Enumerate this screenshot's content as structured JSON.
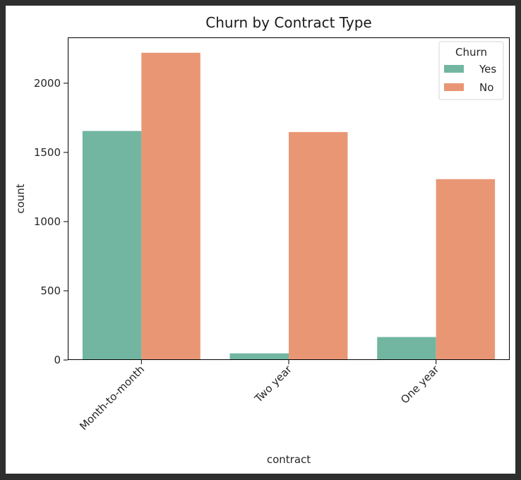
{
  "chart_data": {
    "type": "bar",
    "title": "Churn by Contract Type",
    "xlabel": "contract",
    "ylabel": "count",
    "categories": [
      "Month-to-month",
      "Two year",
      "One year"
    ],
    "series": [
      {
        "name": "Yes",
        "values": [
          1655,
          48,
          166
        ],
        "color": "#72b6a1"
      },
      {
        "name": "No",
        "values": [
          2220,
          1647,
          1307
        ],
        "color": "#e99675"
      }
    ],
    "ylim": [
      0,
      2331
    ],
    "yticks": [
      0,
      500,
      1000,
      1500,
      2000
    ],
    "legend": {
      "title": "Churn",
      "placement": "top-right"
    },
    "grid": false
  }
}
